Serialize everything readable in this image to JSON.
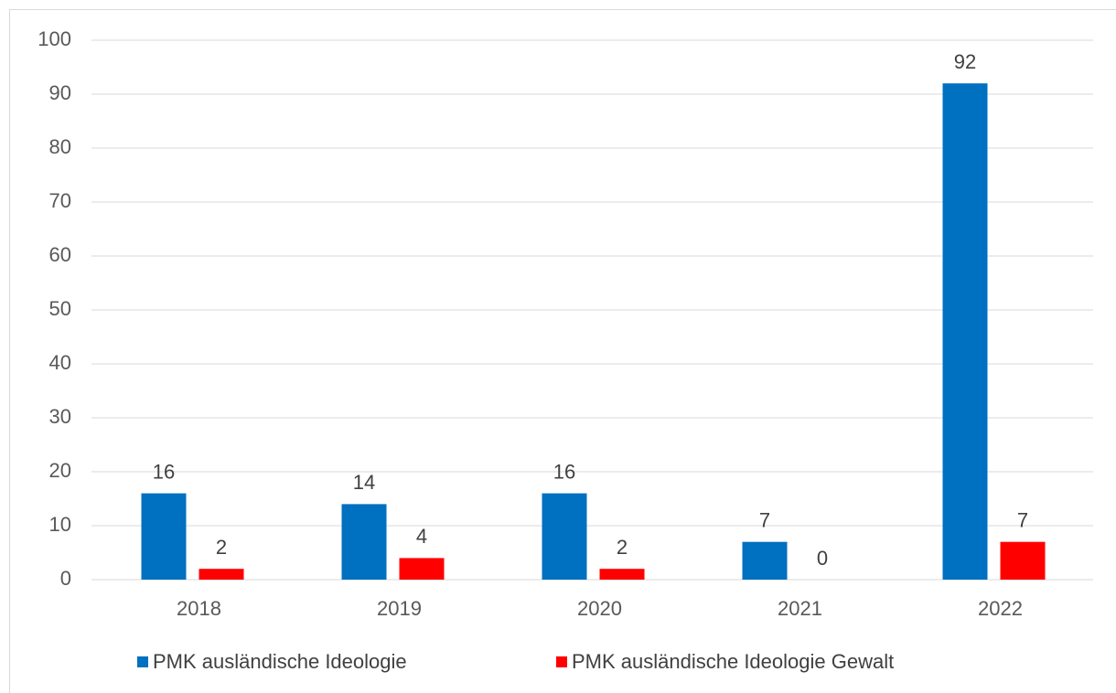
{
  "chart_data": {
    "type": "bar",
    "categories": [
      "2018",
      "2019",
      "2020",
      "2021",
      "2022"
    ],
    "series": [
      {
        "name": "PMK ausländische Ideologie",
        "color": "#0070c0",
        "values": [
          16,
          14,
          16,
          7,
          92
        ]
      },
      {
        "name": "PMK ausländische Ideologie Gewalt",
        "color": "#ff0000",
        "values": [
          2,
          4,
          2,
          0,
          7
        ]
      }
    ],
    "ylim": [
      0,
      100
    ],
    "yticks": [
      0,
      10,
      20,
      30,
      40,
      50,
      60,
      70,
      80,
      90,
      100
    ],
    "grid": true,
    "legend": "bottom"
  }
}
